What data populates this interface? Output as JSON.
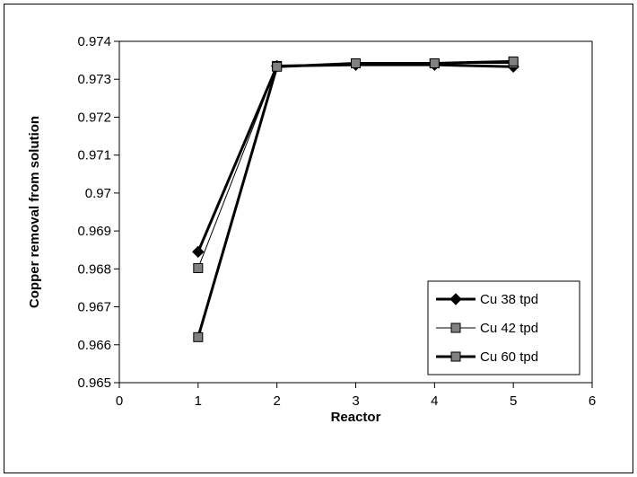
{
  "chart_data": {
    "type": "line",
    "xlabel": "Reactor",
    "ylabel": "Copper removal from solution",
    "xlim": [
      0,
      6
    ],
    "ylim": [
      0.965,
      0.974
    ],
    "x_ticks": [
      "0",
      "1",
      "2",
      "3",
      "4",
      "5",
      "6"
    ],
    "y_ticks": [
      "0.965",
      "0.966",
      "0.967",
      "0.968",
      "0.969",
      "0.97",
      "0.971",
      "0.972",
      "0.973",
      "0.974"
    ],
    "x": [
      1,
      2,
      3,
      4,
      5
    ],
    "grid": false,
    "legend_position": "bottom-right",
    "series": [
      {
        "name": "Cu 38 tpd",
        "marker": "diamond",
        "color": "#000000",
        "line_weight": "thick",
        "values": [
          0.96845,
          0.97335,
          0.97338,
          0.97338,
          0.97333
        ]
      },
      {
        "name": "Cu 42 tpd",
        "marker": "square",
        "color": "#808080",
        "line_weight": "thin",
        "values": [
          0.96802,
          0.97335,
          0.97342,
          0.97342,
          0.97342
        ]
      },
      {
        "name": "Cu 60 tpd",
        "marker": "square",
        "color": "#808080",
        "line_weight": "thick",
        "values": [
          0.9662,
          0.97333,
          0.97342,
          0.97342,
          0.97347
        ]
      }
    ]
  }
}
